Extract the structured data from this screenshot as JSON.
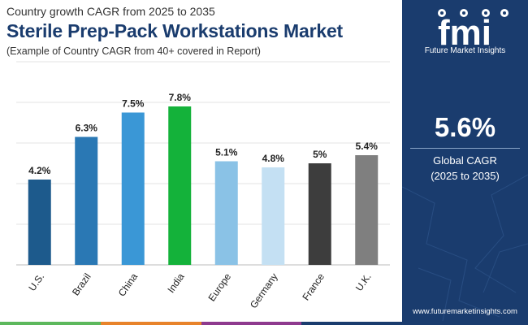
{
  "header": {
    "subtitle": "Country growth CAGR from 2025 to 2035",
    "title": "Sterile Prep-Pack Workstations Market",
    "note": "(Example of Country CAGR from 40+ covered in Report)"
  },
  "chart_data": {
    "type": "bar",
    "title": "Sterile Prep-Pack Workstations Market",
    "categories": [
      "U.S.",
      "Brazil",
      "China",
      "India",
      "Europe",
      "Germany",
      "France",
      "U.K."
    ],
    "values": [
      4.2,
      6.3,
      7.5,
      7.8,
      5.1,
      4.8,
      5.0,
      5.4
    ],
    "value_labels": [
      "4.2%",
      "6.3%",
      "7.5%",
      "7.8%",
      "5.1%",
      "4.8%",
      "5%",
      "5.4%"
    ],
    "colors": [
      "#1d5a8c",
      "#2a78b4",
      "#3a97d6",
      "#14b23a",
      "#8ac2e6",
      "#c4e0f3",
      "#3d3d3d",
      "#7f7f7f"
    ],
    "xlabel": "",
    "ylabel": "",
    "ylim": [
      0,
      10
    ],
    "grid": true
  },
  "sidebar": {
    "logo_letters": "fmi",
    "logo_text": "Future Market Insights",
    "global_cagr_value": "5.6%",
    "global_cagr_label": "Global CAGR",
    "global_cagr_period": "(2025 to 2035)",
    "website": "www.futuremarketinsights.com"
  },
  "theme": {
    "navy": "#1a3c6e",
    "stripe_colors": [
      "#5cb85c",
      "#e8832a",
      "#8e3a8e",
      "#1a3c6e"
    ]
  }
}
